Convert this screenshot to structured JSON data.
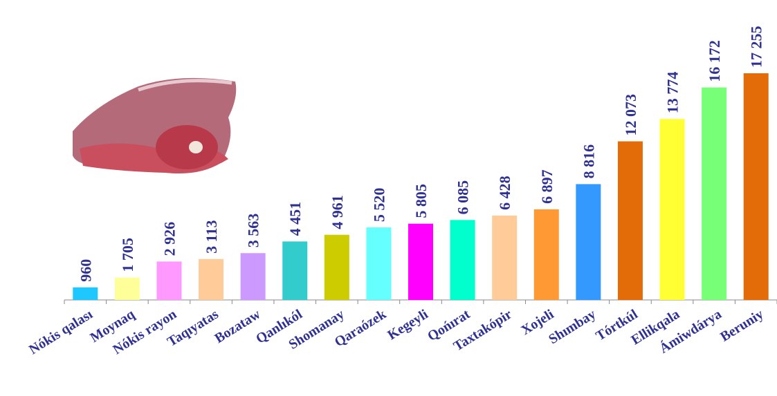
{
  "chart_data": {
    "type": "bar",
    "categories": [
      "Nókis qalası",
      "Moynaq",
      "Nókis rayon",
      "Taqıyatas",
      "Bozataw",
      "Qanlıkól",
      "Shomanay",
      "Qaraózek",
      "Kegeyli",
      "Qońırat",
      "Taxtakópir",
      "Xojeli",
      "Shımbay",
      "Tórtkúl",
      "Ellikqala",
      "Ámiwdárya",
      "Beruniy"
    ],
    "values": [
      960,
      1705,
      2926,
      3113,
      3563,
      4451,
      4961,
      5520,
      5805,
      6085,
      6428,
      6897,
      8816,
      12073,
      13774,
      16172,
      17255
    ],
    "value_labels": [
      "960",
      "1 705",
      "2 926",
      "3 113",
      "3 563",
      "4 451",
      "4 961",
      "5 520",
      "5 805",
      "6 085",
      "6 428",
      "6 897",
      "8 816",
      "12 073",
      "13 774",
      "16 172",
      "17 255"
    ],
    "colors": [
      "#1ec8ff",
      "#ffff99",
      "#ff99ff",
      "#ffcc99",
      "#cc99ff",
      "#33cccc",
      "#cccc00",
      "#66ffff",
      "#ff00ff",
      "#00ffcc",
      "#ffcc99",
      "#ff9933",
      "#3399ff",
      "#e36c09",
      "#ffff33",
      "#77ff77",
      "#e36c09"
    ]
  }
}
